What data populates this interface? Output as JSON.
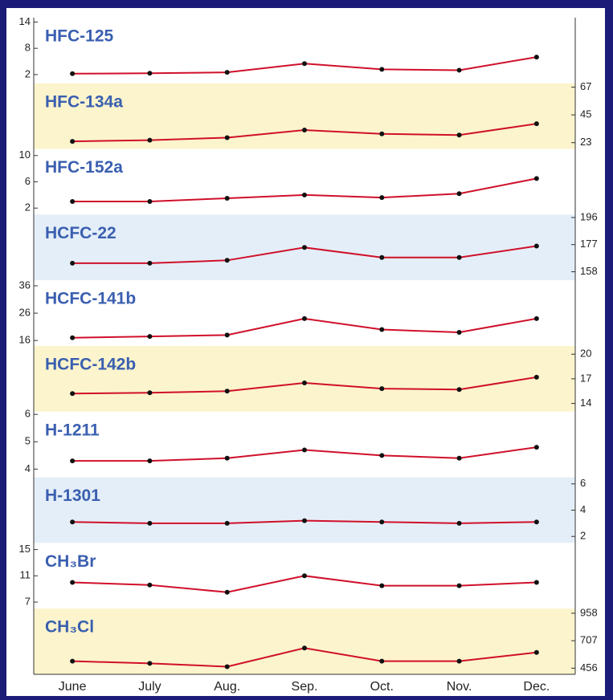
{
  "chart_data": {
    "type": "line",
    "categories": [
      "June",
      "July",
      "Aug.",
      "Sep.",
      "Oct.",
      "Nov.",
      "Dec."
    ],
    "panels": [
      {
        "title": "HFC-125",
        "color": "#d0102a",
        "background": "#ffffff",
        "axis_side": "left",
        "ylim": [
          0,
          15
        ],
        "yticks": [
          2,
          8,
          14
        ],
        "values": [
          2.2,
          2.3,
          2.5,
          4.5,
          3.2,
          3.0,
          6.0
        ]
      },
      {
        "title": "HFC-134a",
        "color": "#d0102a",
        "background": "#fcf4cc",
        "axis_side": "right",
        "ylim": [
          18,
          70
        ],
        "yticks": [
          23,
          45,
          67
        ],
        "values": [
          24,
          25,
          27,
          33,
          30,
          29,
          38
        ]
      },
      {
        "title": "HFC-152a",
        "color": "#d0102a",
        "background": "#ffffff",
        "axis_side": "left",
        "ylim": [
          1,
          11
        ],
        "yticks": [
          2,
          6,
          10
        ],
        "values": [
          3.0,
          3.0,
          3.5,
          4.0,
          3.6,
          4.2,
          6.5
        ]
      },
      {
        "title": "HCFC-22",
        "color": "#d0102a",
        "background": "#e4eef8",
        "axis_side": "right",
        "ylim": [
          152,
          198
        ],
        "yticks": [
          158,
          177,
          196
        ],
        "values": [
          164,
          164,
          166,
          175,
          168,
          168,
          176
        ]
      },
      {
        "title": "HCFC-141b",
        "color": "#d0102a",
        "background": "#ffffff",
        "axis_side": "left",
        "ylim": [
          14,
          38
        ],
        "yticks": [
          16,
          26,
          36
        ],
        "values": [
          17,
          17.5,
          18,
          24,
          20,
          19,
          24
        ]
      },
      {
        "title": "HCFC-142b",
        "color": "#d0102a",
        "background": "#fcf4cc",
        "axis_side": "right",
        "ylim": [
          13,
          21
        ],
        "yticks": [
          14,
          17,
          20
        ],
        "values": [
          15.2,
          15.3,
          15.5,
          16.5,
          15.8,
          15.7,
          17.2
        ]
      },
      {
        "title": "H-1211",
        "color": "#d0102a",
        "background": "#ffffff",
        "axis_side": "left",
        "ylim": [
          3.7,
          6.1
        ],
        "yticks": [
          4,
          5,
          6
        ],
        "values": [
          4.3,
          4.3,
          4.4,
          4.7,
          4.5,
          4.4,
          4.8
        ]
      },
      {
        "title": "H-1301",
        "color": "#d0102a",
        "background": "#e4eef8",
        "axis_side": "right",
        "ylim": [
          1.5,
          6.5
        ],
        "yticks": [
          2,
          4,
          6
        ],
        "values": [
          3.1,
          3.0,
          3.0,
          3.2,
          3.1,
          3.0,
          3.1
        ]
      },
      {
        "title": "CH₃Br",
        "color": "#d0102a",
        "background": "#ffffff",
        "axis_side": "left",
        "ylim": [
          6,
          16
        ],
        "yticks": [
          7,
          11,
          15
        ],
        "values": [
          10,
          9.6,
          8.5,
          11,
          9.5,
          9.5,
          10
        ]
      },
      {
        "title": "CH₃Cl",
        "color": "#d0102a",
        "background": "#fcf4cc",
        "axis_side": "right",
        "ylim": [
          400,
          1000
        ],
        "yticks": [
          456,
          707,
          958
        ],
        "values": [
          520,
          500,
          470,
          640,
          520,
          520,
          600
        ]
      }
    ]
  }
}
